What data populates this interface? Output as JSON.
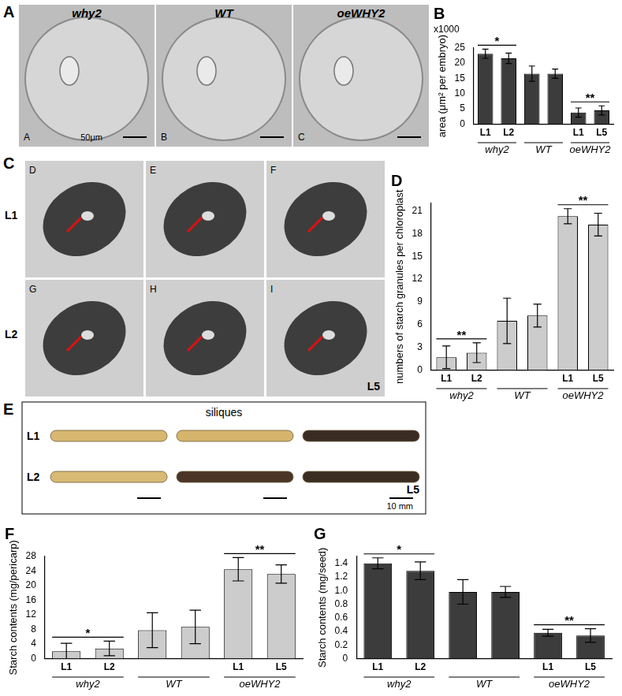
{
  "image_panels": {
    "A": {
      "label": "A",
      "columns": [
        "why2",
        "WT",
        "oeWHY2"
      ],
      "image_letters": [
        "A",
        "B",
        "C"
      ],
      "scale_bar": "50μm"
    },
    "C": {
      "label": "C",
      "row_labels": [
        "L1",
        "L2"
      ],
      "image_letters": [
        "D",
        "E",
        "F",
        "G",
        "H",
        "I"
      ],
      "last_image_line": "L5"
    },
    "E": {
      "label": "E",
      "title": "siliques",
      "row_labels": [
        "L1",
        "L2"
      ],
      "silique_colors": [
        "#d8b870",
        "#d6b46c",
        "#3a2c22",
        "#d9ba74",
        "#4a3526",
        "#3b2d22"
      ],
      "last_line": "L5",
      "scale_bar": "10 mm"
    }
  },
  "chart_data": [
    {
      "type": "bar",
      "title": "B",
      "subtitle": "x1000",
      "y_label": "area (μm² per embryo)",
      "categories": [
        "L1",
        "L2",
        null,
        null,
        "L1",
        "L5"
      ],
      "groups": [
        "why2",
        "why2",
        "WT",
        "WT",
        "oeWHY2",
        "oeWHY2"
      ],
      "values": [
        23,
        21.5,
        16.5,
        16.5,
        3.8,
        4.5
      ],
      "errors": [
        1.5,
        1.7,
        2.5,
        1.5,
        1.5,
        1.5
      ],
      "color": "#3c3c3c",
      "ylim": [
        0,
        25
      ],
      "yticks": [
        0,
        5,
        10,
        15,
        20,
        25
      ],
      "grid": false,
      "annotations": [
        {
          "text": "*",
          "group": "why2"
        },
        {
          "text": "**",
          "group": "oeWHY2"
        }
      ]
    },
    {
      "type": "bar",
      "title": "D",
      "y_label": "numbers of starch granules per chloroplast",
      "categories": [
        "L1",
        "L2",
        null,
        null,
        "L1",
        "L5"
      ],
      "groups": [
        "why2",
        "why2",
        "WT",
        "WT",
        "oeWHY2",
        "oeWHY2"
      ],
      "values": [
        1.7,
        2.3,
        6.5,
        7.2,
        20.3,
        19.2
      ],
      "errors": [
        1.5,
        1.3,
        3,
        1.5,
        1,
        1.5
      ],
      "color": "#cccccc",
      "ylim": [
        0,
        22
      ],
      "yticks": [
        0,
        3,
        6,
        9,
        12,
        15,
        18,
        21
      ],
      "grid": false,
      "annotations": [
        {
          "text": "**",
          "group": "why2"
        },
        {
          "text": "**",
          "group": "oeWHY2"
        }
      ]
    },
    {
      "type": "bar",
      "title": "F",
      "y_label": "Starch contents (mg/pericarp)",
      "categories": [
        "L1",
        "L2",
        null,
        null,
        "L1",
        "L5"
      ],
      "groups": [
        "why2",
        "why2",
        "WT",
        "WT",
        "oeWHY2",
        "oeWHY2"
      ],
      "values": [
        2,
        2.8,
        7.8,
        8.7,
        24.5,
        23.2
      ],
      "errors": [
        2.2,
        2,
        4.8,
        4.6,
        3.2,
        2.5
      ],
      "color": "#cccccc",
      "ylim": [
        0,
        28
      ],
      "yticks": [
        0,
        4,
        8,
        12,
        16,
        20,
        24,
        28
      ],
      "grid": false,
      "annotations": [
        {
          "text": "*",
          "group": "why2"
        },
        {
          "text": "**",
          "group": "oeWHY2"
        }
      ]
    },
    {
      "type": "bar",
      "title": "G",
      "y_label": "Starch contents (mg/seed)",
      "categories": [
        "L1",
        "L2",
        null,
        null,
        "L1",
        "L5"
      ],
      "groups": [
        "why2",
        "why2",
        "WT",
        "WT",
        "oeWHY2",
        "oeWHY2"
      ],
      "values": [
        1.4,
        1.29,
        0.98,
        0.98,
        0.38,
        0.34
      ],
      "errors": [
        0.08,
        0.13,
        0.18,
        0.08,
        0.05,
        0.1
      ],
      "color": "#3c3c3c",
      "ylim": [
        0,
        1.5
      ],
      "yticks": [
        0,
        0.2,
        0.4,
        0.6,
        0.8,
        {
          "value": 1,
          "label": "1.0"
        },
        1.2,
        1.4
      ],
      "grid": false,
      "annotations": [
        {
          "text": "*",
          "group": "why2"
        },
        {
          "text": "**",
          "group": "oeWHY2"
        }
      ]
    }
  ]
}
